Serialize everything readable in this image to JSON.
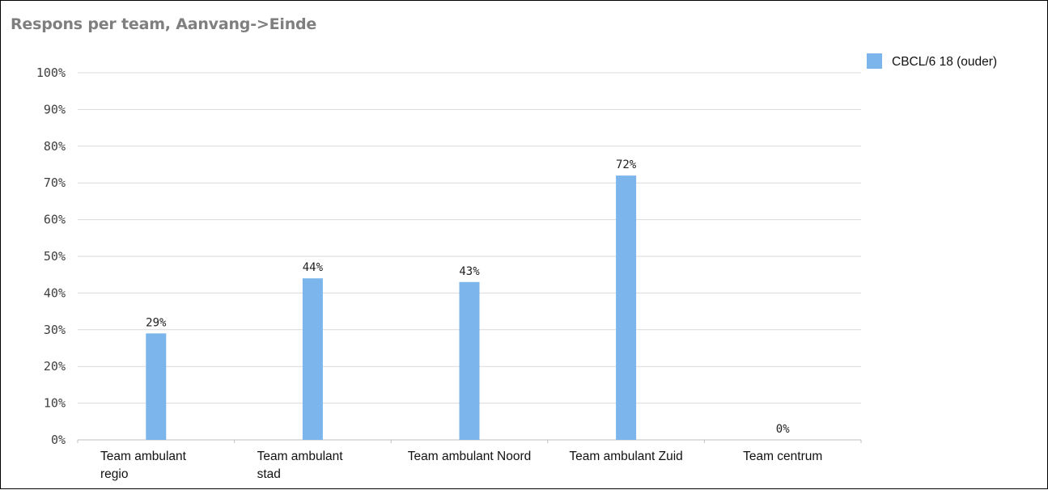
{
  "title": "Respons per team, Aanvang->Einde",
  "legend": {
    "position": "top-right"
  },
  "colors": {
    "bar": "#7cb5ec",
    "grid": "#d9d9d9",
    "axis": "#bfbfbf",
    "title": "#7f7f7f"
  },
  "chart_data": {
    "type": "bar",
    "title": "Respons per team, Aanvang->Einde",
    "categories": [
      [
        "Team ambulant",
        "regio"
      ],
      [
        "Team ambulant",
        "stad"
      ],
      [
        "Team ambulant Noord"
      ],
      [
        "Team ambulant Zuid"
      ],
      [
        "Team centrum"
      ]
    ],
    "series": [
      {
        "name": "CBCL/6 18 (ouder)",
        "values": [
          29,
          44,
          43,
          72,
          0
        ]
      }
    ],
    "data_labels": [
      "29%",
      "44%",
      "43%",
      "72%",
      "0%"
    ],
    "ylim": [
      0,
      100
    ],
    "yticks": [
      0,
      10,
      20,
      30,
      40,
      50,
      60,
      70,
      80,
      90,
      100
    ],
    "ytick_labels": [
      "0%",
      "10%",
      "20%",
      "30%",
      "40%",
      "50%",
      "60%",
      "70%",
      "80%",
      "90%",
      "100%"
    ],
    "grid": true,
    "legend_placement": "top-right"
  }
}
